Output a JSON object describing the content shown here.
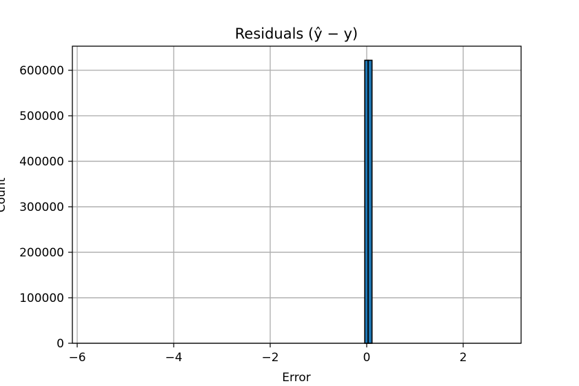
{
  "chart_data": {
    "type": "bar",
    "title": "Residuals (ŷ − y)",
    "xlabel": "Error",
    "ylabel": "Count",
    "xlim": [
      -6.1,
      3.2
    ],
    "ylim": [
      0,
      653000
    ],
    "xticks": [
      -6,
      -4,
      -2,
      0,
      2
    ],
    "xtick_labels": [
      "−6",
      "−4",
      "−2",
      "0",
      "2"
    ],
    "yticks": [
      0,
      100000,
      200000,
      300000,
      400000,
      500000,
      600000
    ],
    "ytick_labels": [
      "0",
      "100000",
      "200000",
      "300000",
      "400000",
      "500000",
      "600000"
    ],
    "grid": true,
    "legend": "none",
    "bar_color": "#1f77b4",
    "edge_color": "#000000",
    "bins": [
      {
        "x0": -0.04,
        "x1": 0.03,
        "value": 622000
      },
      {
        "x0": 0.03,
        "x1": 0.11,
        "value": 622000
      }
    ]
  }
}
